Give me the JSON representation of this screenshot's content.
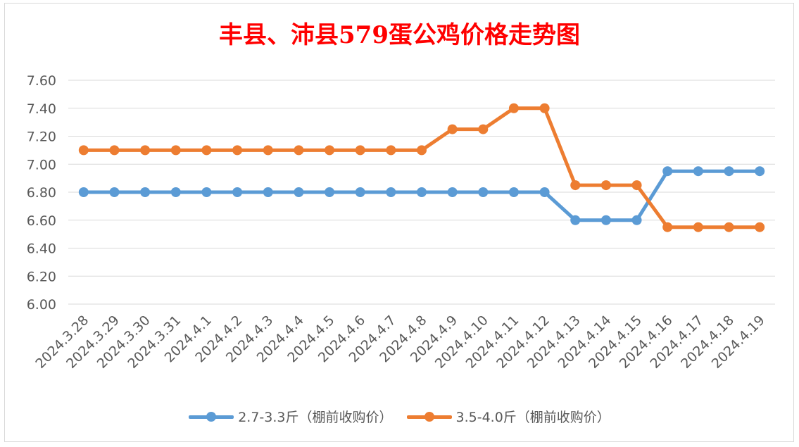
{
  "chart_data": {
    "type": "line",
    "title": "丰县、沛县579蛋公鸡价格走势图",
    "categories": [
      "2024.3.28",
      "2024.3.29",
      "2024.3.30",
      "2024.3.31",
      "2024.4.1",
      "2024.4.2",
      "2024.4.3",
      "2024.4.4",
      "2024.4.5",
      "2024.4.6",
      "2024.4.7",
      "2024.4.8",
      "2024.4.9",
      "2024.4.10",
      "2024.4.11",
      "2024.4.12",
      "2024.4.13",
      "2024.4.14",
      "2024.4.15",
      "2024.4.16",
      "2024.4.17",
      "2024.4.18",
      "2024.4.19"
    ],
    "series": [
      {
        "name": "2.7-3.3斤（棚前收购价）",
        "color": "#5b9bd5",
        "values": [
          6.8,
          6.8,
          6.8,
          6.8,
          6.8,
          6.8,
          6.8,
          6.8,
          6.8,
          6.8,
          6.8,
          6.8,
          6.8,
          6.8,
          6.8,
          6.8,
          6.6,
          6.6,
          6.6,
          6.95,
          6.95,
          6.95,
          6.95
        ]
      },
      {
        "name": "3.5-4.0斤（棚前收购价）",
        "color": "#ed7d31",
        "values": [
          7.1,
          7.1,
          7.1,
          7.1,
          7.1,
          7.1,
          7.1,
          7.1,
          7.1,
          7.1,
          7.1,
          7.1,
          7.25,
          7.25,
          7.4,
          7.4,
          6.85,
          6.85,
          6.85,
          6.55,
          6.55,
          6.55,
          6.55
        ]
      }
    ],
    "ylim": [
      6.0,
      7.6
    ],
    "yticks": [
      "6.00",
      "6.20",
      "6.40",
      "6.60",
      "6.80",
      "7.00",
      "7.20",
      "7.40",
      "7.60"
    ],
    "grid": true,
    "legend": "bottom",
    "xlabel": "",
    "ylabel": ""
  }
}
